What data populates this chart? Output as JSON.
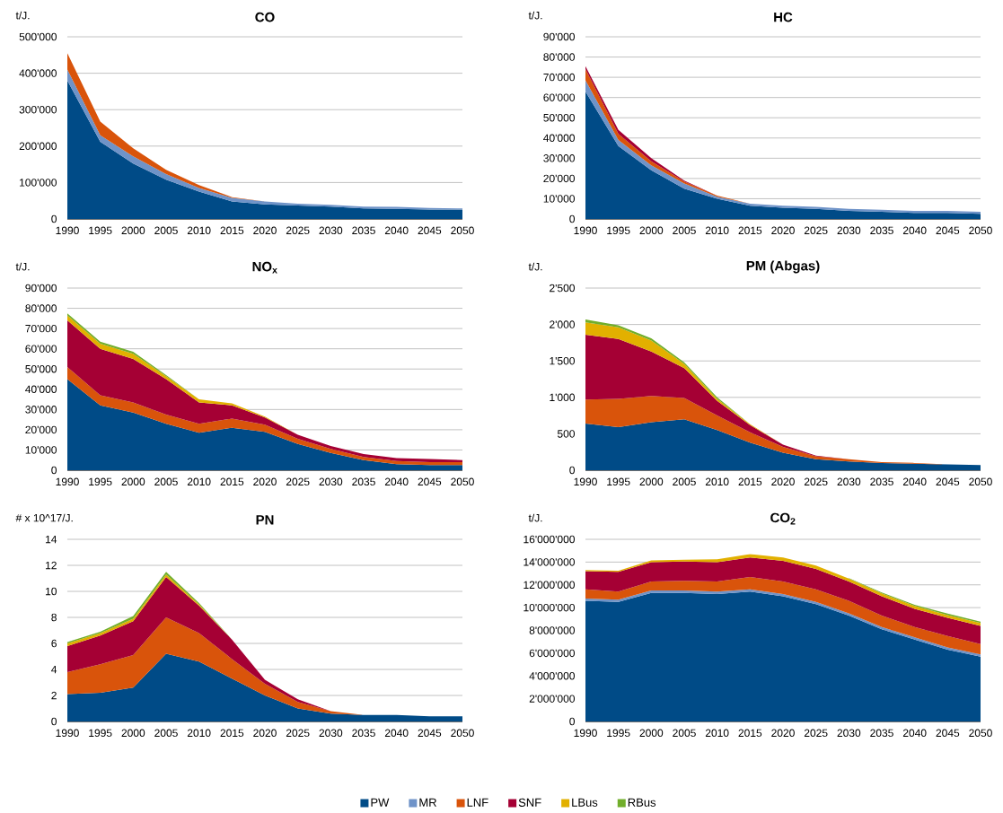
{
  "chart_data": [
    {
      "type": "area",
      "stacked": true,
      "title": "CO",
      "ylabel": "t/J.",
      "grid": "y",
      "categories": [
        "1990",
        "1995",
        "2000",
        "2005",
        "2010",
        "2015",
        "2020",
        "2025",
        "2030",
        "2035",
        "2040",
        "2045",
        "2050"
      ],
      "ylim": [
        0,
        500000
      ],
      "yticks": [
        0,
        {
          "value": 100000,
          "label": "100'000"
        },
        {
          "value": 200000,
          "label": "200'000"
        },
        {
          "value": 300000,
          "label": "300'000"
        },
        {
          "value": 400000,
          "label": "400'000"
        },
        {
          "value": 500000,
          "label": "500'000"
        }
      ],
      "series": [
        {
          "color": "#004b87",
          "values": [
            380000,
            212000,
            152000,
            108000,
            75000,
            48000,
            40000,
            37000,
            34000,
            29000,
            28000,
            26000,
            26000
          ]
        },
        {
          "color": "#6f93c8",
          "values": [
            30000,
            18000,
            20000,
            15000,
            10000,
            10000,
            8000,
            5000,
            5000,
            5000,
            5000,
            4000,
            3000
          ]
        },
        {
          "color": "#d9540b",
          "values": [
            45000,
            37000,
            22000,
            12000,
            8000,
            2000,
            0,
            0,
            0,
            0,
            0,
            0,
            0
          ]
        }
      ]
    },
    {
      "type": "area",
      "stacked": true,
      "title": "HC",
      "ylabel": "t/J.",
      "grid": "y",
      "categories": [
        "1990",
        "1995",
        "2000",
        "2005",
        "2010",
        "2015",
        "2020",
        "2025",
        "2030",
        "2035",
        "2040",
        "2045",
        "2050"
      ],
      "ylim": [
        0,
        90000
      ],
      "yticks": [
        0,
        {
          "value": 10000,
          "label": "10'000"
        },
        {
          "value": 20000,
          "label": "20'000"
        },
        {
          "value": 30000,
          "label": "30'000"
        },
        {
          "value": 40000,
          "label": "40'000"
        },
        {
          "value": 50000,
          "label": "50'000"
        },
        {
          "value": 60000,
          "label": "60'000"
        },
        {
          "value": 70000,
          "label": "70'000"
        },
        {
          "value": 80000,
          "label": "80'000"
        },
        {
          "value": 90000,
          "label": "90'000"
        }
      ],
      "series": [
        {
          "color": "#004b87",
          "values": [
            63000,
            36000,
            24000,
            15000,
            10000,
            6500,
            5500,
            5000,
            4000,
            3500,
            3000,
            3000,
            2500
          ]
        },
        {
          "color": "#6f93c8",
          "values": [
            5500,
            3000,
            2500,
            2500,
            1000,
            1000,
            1000,
            1000,
            1000,
            1000,
            1000,
            1000,
            1000
          ]
        },
        {
          "color": "#d9540b",
          "values": [
            5500,
            3000,
            2000,
            1000,
            500,
            0,
            0,
            0,
            0,
            0,
            0,
            0,
            0
          ]
        },
        {
          "color": "#a50034",
          "values": [
            1500,
            2000,
            1500,
            500,
            0,
            0,
            0,
            0,
            0,
            0,
            0,
            0,
            0
          ]
        }
      ]
    },
    {
      "type": "area",
      "stacked": true,
      "title": "NO$_{x}$",
      "ylabel": "t/J.",
      "grid": "y",
      "categories": [
        "1990",
        "1995",
        "2000",
        "2005",
        "2010",
        "2015",
        "2020",
        "2025",
        "2030",
        "2035",
        "2040",
        "2045",
        "2050"
      ],
      "ylim": [
        0,
        90000
      ],
      "yticks": [
        0,
        {
          "value": 10000,
          "label": "10'000"
        },
        {
          "value": 20000,
          "label": "20'000"
        },
        {
          "value": 30000,
          "label": "30'000"
        },
        {
          "value": 40000,
          "label": "40'000"
        },
        {
          "value": 50000,
          "label": "50'000"
        },
        {
          "value": 60000,
          "label": "60'000"
        },
        {
          "value": 70000,
          "label": "70'000"
        },
        {
          "value": 80000,
          "label": "80'000"
        },
        {
          "value": 90000,
          "label": "90'000"
        }
      ],
      "series": [
        {
          "color": "#004b87",
          "values": [
            45000,
            32000,
            28500,
            23000,
            18500,
            21000,
            19000,
            13000,
            8500,
            5000,
            3000,
            2500,
            2500
          ]
        },
        {
          "color": "#d9540b",
          "values": [
            6000,
            5000,
            5000,
            4500,
            4500,
            4500,
            3500,
            2500,
            2000,
            1500,
            1500,
            1500,
            1500
          ]
        },
        {
          "color": "#a50034",
          "values": [
            23000,
            23000,
            21500,
            17500,
            10500,
            6500,
            3500,
            2000,
            1500,
            1500,
            1500,
            1500,
            1000
          ]
        },
        {
          "color": "#e2b000",
          "values": [
            2500,
            2500,
            2500,
            1500,
            1500,
            1000,
            500,
            0,
            0,
            0,
            0,
            0,
            0
          ]
        },
        {
          "color": "#71ae2b",
          "values": [
            1000,
            1000,
            1000,
            500,
            0,
            0,
            0,
            0,
            0,
            0,
            0,
            0,
            0
          ]
        }
      ]
    },
    {
      "type": "area",
      "stacked": true,
      "title": "PM (Abgas)",
      "ylabel": "t/J.",
      "grid": "y",
      "categories": [
        "1990",
        "1995",
        "2000",
        "2005",
        "2010",
        "2015",
        "2020",
        "2025",
        "2030",
        "2035",
        "2040",
        "2045",
        "2050"
      ],
      "ylim": [
        0,
        2500
      ],
      "yticks": [
        0,
        500,
        {
          "value": 1000,
          "label": "1'000"
        },
        {
          "value": 1500,
          "label": "1'500"
        },
        {
          "value": 2000,
          "label": "2'000"
        },
        {
          "value": 2500,
          "label": "2'500"
        }
      ],
      "series": [
        {
          "color": "#004b87",
          "values": [
            640,
            590,
            660,
            700,
            550,
            380,
            240,
            150,
            120,
            100,
            90,
            80,
            70
          ]
        },
        {
          "color": "#d9540b",
          "values": [
            330,
            390,
            360,
            290,
            200,
            140,
            80,
            40,
            30,
            10,
            10,
            0,
            0
          ]
        },
        {
          "color": "#a50034",
          "values": [
            890,
            820,
            610,
            410,
            200,
            100,
            30,
            10,
            0,
            0,
            0,
            0,
            0
          ]
        },
        {
          "color": "#e2b000",
          "values": [
            170,
            160,
            150,
            60,
            30,
            10,
            0,
            0,
            0,
            0,
            0,
            0,
            0
          ]
        },
        {
          "color": "#71ae2b",
          "values": [
            40,
            30,
            30,
            20,
            20,
            0,
            0,
            0,
            0,
            0,
            0,
            0,
            0
          ]
        }
      ]
    },
    {
      "type": "area",
      "stacked": true,
      "title": "PN",
      "ylabel": "# x 10^17/J.",
      "grid": "y",
      "categories": [
        "1990",
        "1995",
        "2000",
        "2005",
        "2010",
        "2015",
        "2020",
        "2025",
        "2030",
        "2035",
        "2040",
        "2045",
        "2050"
      ],
      "ylim": [
        0,
        14
      ],
      "yticks": [
        0,
        2,
        4,
        6,
        8,
        10,
        12,
        14
      ],
      "series": [
        {
          "color": "#004b87",
          "values": [
            2.1,
            2.2,
            2.6,
            5.2,
            4.6,
            3.3,
            2.0,
            1.0,
            0.6,
            0.5,
            0.5,
            0.4,
            0.4
          ]
        },
        {
          "color": "#d9540b",
          "values": [
            1.7,
            2.2,
            2.5,
            2.8,
            2.2,
            1.5,
            0.9,
            0.5,
            0.2,
            0,
            0,
            0,
            0
          ]
        },
        {
          "color": "#a50034",
          "values": [
            2.0,
            2.2,
            2.6,
            3.1,
            2.1,
            1.5,
            0.3,
            0.2,
            0,
            0,
            0,
            0,
            0
          ]
        },
        {
          "color": "#e2b000",
          "values": [
            0.2,
            0.2,
            0.2,
            0.2,
            0.1,
            0,
            0,
            0,
            0,
            0,
            0,
            0,
            0
          ]
        },
        {
          "color": "#71ae2b",
          "values": [
            0.1,
            0.1,
            0.2,
            0.2,
            0.1,
            0,
            0,
            0,
            0,
            0,
            0,
            0,
            0
          ]
        }
      ]
    },
    {
      "type": "area",
      "stacked": true,
      "title": "CO$_{2}$",
      "ylabel": "t/J.",
      "grid": "y",
      "legend": "bottom",
      "categories": [
        "1990",
        "1995",
        "2000",
        "2005",
        "2010",
        "2015",
        "2020",
        "2025",
        "2030",
        "2035",
        "2040",
        "2045",
        "2050"
      ],
      "ylim": [
        0,
        16000000
      ],
      "yticks": [
        0,
        {
          "value": 2000000,
          "label": "2'000'000"
        },
        {
          "value": 4000000,
          "label": "4'000'000"
        },
        {
          "value": 6000000,
          "label": "6'000'000"
        },
        {
          "value": 8000000,
          "label": "8'000'000"
        },
        {
          "value": 10000000,
          "label": "10'000'000"
        },
        {
          "value": 12000000,
          "label": "12'000'000"
        },
        {
          "value": 14000000,
          "label": "14'000'000"
        },
        {
          "value": 16000000,
          "label": "16'000'000"
        }
      ],
      "series": [
        {
          "name": "PW",
          "color": "#004b87",
          "values": [
            10600000,
            10500000,
            11300000,
            11300000,
            11200000,
            11400000,
            11000000,
            10300000,
            9300000,
            8100000,
            7200000,
            6300000,
            5700000
          ]
        },
        {
          "name": "MR",
          "color": "#6f93c8",
          "values": [
            200000,
            200000,
            200000,
            200000,
            200000,
            200000,
            200000,
            200000,
            200000,
            200000,
            200000,
            200000,
            200000
          ]
        },
        {
          "name": "LNF",
          "color": "#d9540b",
          "values": [
            800000,
            700000,
            800000,
            850000,
            900000,
            1100000,
            1100000,
            1100000,
            1100000,
            1000000,
            900000,
            1000000,
            900000
          ]
        },
        {
          "name": "SNF",
          "color": "#a50034",
          "values": [
            1600000,
            1750000,
            1700000,
            1700000,
            1700000,
            1700000,
            1800000,
            1800000,
            1700000,
            1700000,
            1600000,
            1600000,
            1600000
          ]
        },
        {
          "name": "LBus",
          "color": "#e2b000",
          "values": [
            100000,
            100000,
            150000,
            150000,
            250000,
            300000,
            300000,
            300000,
            250000,
            250000,
            250000,
            250000,
            250000
          ]
        },
        {
          "name": "RBus",
          "color": "#71ae2b",
          "values": [
            null,
            null,
            null,
            null,
            null,
            null,
            null,
            null,
            50000,
            80000,
            100000,
            120000,
            120000
          ]
        }
      ]
    }
  ]
}
